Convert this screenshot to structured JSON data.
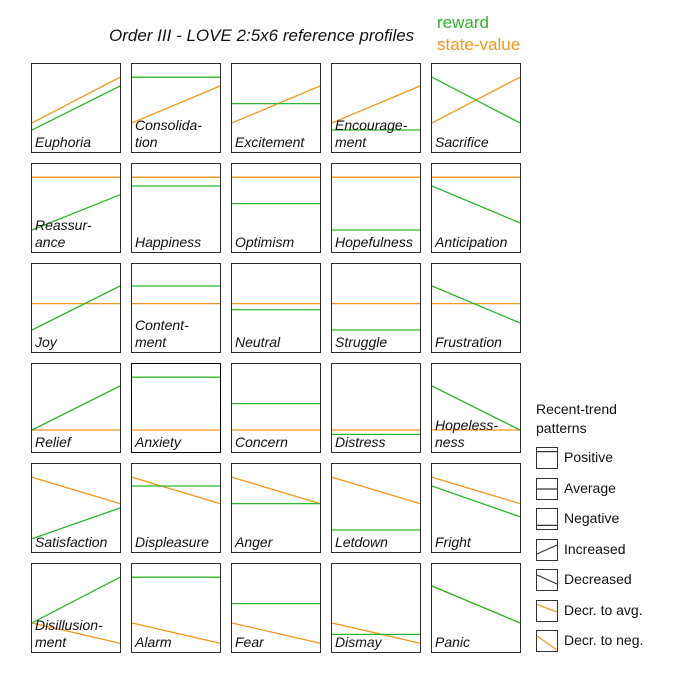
{
  "title": "Order III - LOVE 2:5x6 reference profiles",
  "legend": {
    "reward": "reward",
    "state_value": "state-value"
  },
  "colors": {
    "reward": "#2db52d",
    "state_value": "#f5951d"
  },
  "cells": [
    {
      "label": "Euphoria",
      "r": [
        0.25,
        0.75
      ],
      "v": [
        0.33,
        0.85
      ]
    },
    {
      "label": "Consolida-\ntion",
      "r": [
        0.85,
        0.85
      ],
      "v": [
        0.33,
        0.75
      ]
    },
    {
      "label": "Excitement",
      "r": [
        0.55,
        0.55
      ],
      "v": [
        0.33,
        0.75
      ]
    },
    {
      "label": "Encourage-\nment",
      "r": [
        0.25,
        0.25
      ],
      "v": [
        0.33,
        0.75
      ]
    },
    {
      "label": "Sacrifice",
      "r": [
        0.85,
        0.33
      ],
      "v": [
        0.33,
        0.85
      ]
    },
    {
      "label": "Reassur-\nance",
      "r": [
        0.25,
        0.65
      ],
      "v": [
        0.85,
        0.85
      ]
    },
    {
      "label": "Happiness",
      "r": [
        0.75,
        0.75
      ],
      "v": [
        0.85,
        0.85
      ]
    },
    {
      "label": "Optimism",
      "r": [
        0.55,
        0.55
      ],
      "v": [
        0.85,
        0.85
      ]
    },
    {
      "label": "Hopefulness",
      "r": [
        0.25,
        0.25
      ],
      "v": [
        0.85,
        0.85
      ]
    },
    {
      "label": "Anticipation",
      "r": [
        0.75,
        0.33
      ],
      "v": [
        0.85,
        0.85
      ]
    },
    {
      "label": "Joy",
      "r": [
        0.25,
        0.75
      ],
      "v": [
        0.55,
        0.55
      ]
    },
    {
      "label": "Content-\nment",
      "r": [
        0.75,
        0.75
      ],
      "v": [
        0.55,
        0.55
      ]
    },
    {
      "label": "Neutral",
      "r": [
        0.48,
        0.48
      ],
      "v": [
        0.55,
        0.55
      ]
    },
    {
      "label": "Struggle",
      "r": [
        0.25,
        0.25
      ],
      "v": [
        0.55,
        0.55
      ]
    },
    {
      "label": "Frustration",
      "r": [
        0.75,
        0.33
      ],
      "v": [
        0.55,
        0.55
      ]
    },
    {
      "label": "Relief",
      "r": [
        0.25,
        0.75
      ],
      "v": [
        0.25,
        0.25
      ]
    },
    {
      "label": "Anxiety",
      "r": [
        0.85,
        0.85
      ],
      "v": [
        0.25,
        0.25
      ]
    },
    {
      "label": "Concern",
      "r": [
        0.55,
        0.55
      ],
      "v": [
        0.25,
        0.25
      ]
    },
    {
      "label": "Distress",
      "r": [
        0.2,
        0.2
      ],
      "v": [
        0.25,
        0.25
      ]
    },
    {
      "label": "Hopeless-\nness",
      "r": [
        0.75,
        0.25
      ],
      "v": [
        0.25,
        0.25
      ]
    },
    {
      "label": "Satisfaction",
      "r": [
        0.15,
        0.5
      ],
      "v": [
        0.85,
        0.55
      ]
    },
    {
      "label": "Displeasure",
      "r": [
        0.75,
        0.75
      ],
      "v": [
        0.85,
        0.55
      ]
    },
    {
      "label": "Anger",
      "r": [
        0.55,
        0.55
      ],
      "v": [
        0.85,
        0.55
      ]
    },
    {
      "label": "Letdown",
      "r": [
        0.25,
        0.25
      ],
      "v": [
        0.85,
        0.55
      ]
    },
    {
      "label": "Fright",
      "r": [
        0.75,
        0.4
      ],
      "v": [
        0.85,
        0.55
      ]
    },
    {
      "label": "Disillusion-\nment",
      "r": [
        0.33,
        0.85
      ],
      "v": [
        0.33,
        0.1
      ]
    },
    {
      "label": "Alarm",
      "r": [
        0.85,
        0.85
      ],
      "v": [
        0.33,
        0.1
      ]
    },
    {
      "label": "Fear",
      "r": [
        0.55,
        0.55
      ],
      "v": [
        0.33,
        0.1
      ]
    },
    {
      "label": "Dismay",
      "r": [
        0.2,
        0.2
      ],
      "v": [
        0.33,
        0.1
      ]
    },
    {
      "label": "Panic",
      "r": [
        0.75,
        0.33
      ],
      "v": [
        0.75,
        0.33
      ]
    }
  ],
  "trend_legend": {
    "title": "Recent-trend\npatterns",
    "items": [
      {
        "label": "Positive",
        "pattern": "positive"
      },
      {
        "label": "Average",
        "pattern": "average"
      },
      {
        "label": "Negative",
        "pattern": "negative"
      },
      {
        "label": "Increased",
        "pattern": "increased"
      },
      {
        "label": "Decreased",
        "pattern": "decreased"
      },
      {
        "label": "Decr. to avg.",
        "pattern": "decr-to-avg"
      },
      {
        "label": "Decr. to neg.",
        "pattern": "decr-to-neg"
      }
    ]
  }
}
